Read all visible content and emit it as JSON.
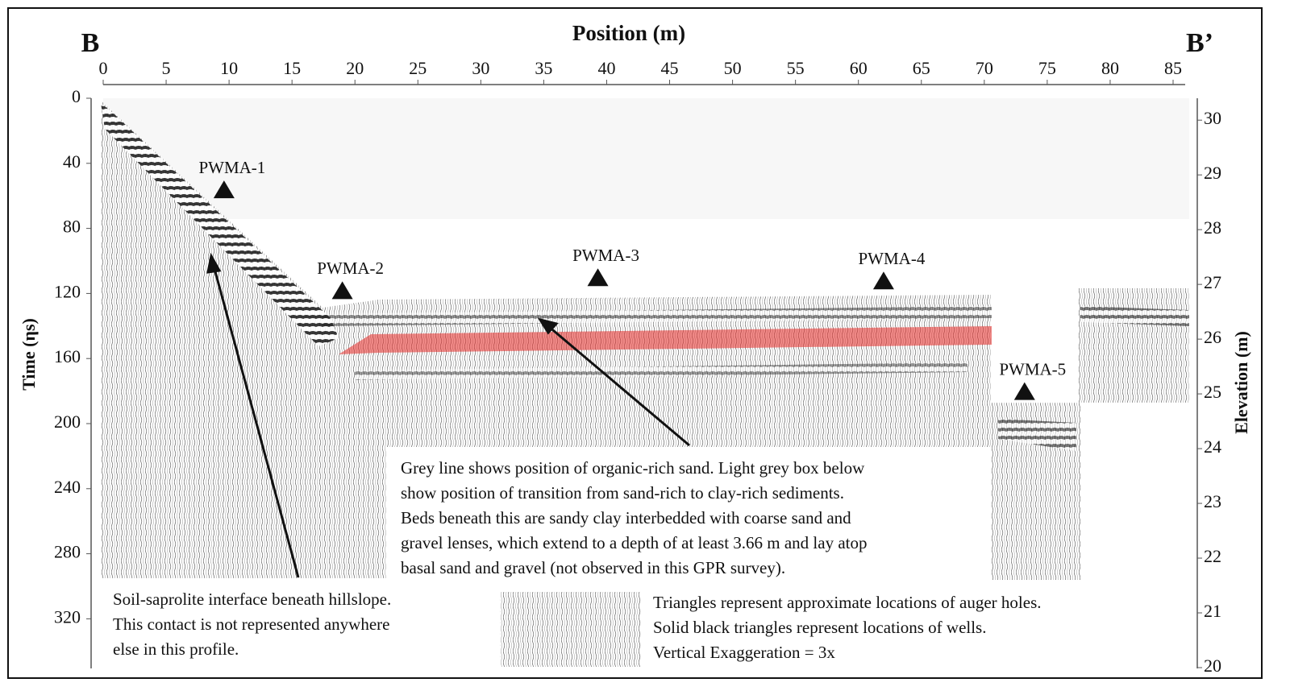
{
  "chart_data": {
    "type": "radargram",
    "title": "Position (m)",
    "start_label": "B",
    "end_label": "B’",
    "y_label": "Time (ηs)",
    "y2_label": "Elevation (m)",
    "xlim": [
      0,
      85
    ],
    "xticks": [
      0,
      5,
      10,
      15,
      20,
      25,
      30,
      35,
      40,
      45,
      50,
      55,
      60,
      65,
      70,
      75,
      80,
      85
    ],
    "ylim": [
      0,
      350
    ],
    "yticks": [
      0,
      40,
      80,
      120,
      160,
      200,
      240,
      280,
      320
    ],
    "y2lim": [
      30.4,
      20
    ],
    "y2ticks": [
      30,
      29,
      28,
      27,
      26,
      25,
      24,
      23,
      22,
      21,
      20
    ],
    "wells": [
      {
        "name": "PWMA-1",
        "x": 9.6,
        "time": 56
      },
      {
        "name": "PWMA-2",
        "x": 19.0,
        "time": 118
      },
      {
        "name": "PWMA-3",
        "x": 39.3,
        "time": 110
      },
      {
        "name": "PWMA-4",
        "x": 62.0,
        "time": 112
      },
      {
        "name": "PWMA-5",
        "x": 73.2,
        "time": 180
      }
    ],
    "annotations": [
      {
        "lines": [
          "Grey line shows position of organic-rich sand. Light grey box below",
          "show position of transition from sand-rich to clay-rich sediments.",
          "Beds beneath this are sandy clay interbedded with coarse sand and",
          "gravel lenses, which extend to a depth of at least 3.66 m and lay atop",
          "basal sand and gravel (not observed in this GPR survey)."
        ]
      },
      {
        "lines": [
          "Soil-saprolite interface beneath hillslope.",
          "This contact is not represented anywhere",
          "else in this profile."
        ]
      },
      {
        "lines": [
          "Triangles represent approximate locations of auger holes.",
          "Solid black triangles represent locations of wells.",
          "Vertical Exaggeration = 3x"
        ]
      }
    ]
  }
}
